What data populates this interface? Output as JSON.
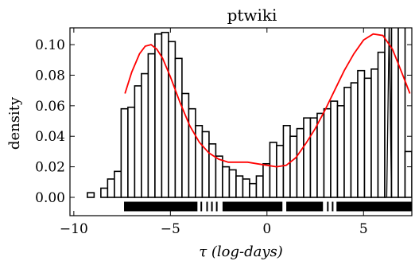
{
  "chart_data": {
    "type": "bar",
    "title": "ptwiki",
    "xlabel": "τ (log-days)",
    "ylabel": "density",
    "xlim": [
      -10.2,
      7.5
    ],
    "ylim": [
      -0.012,
      0.111
    ],
    "xticks": [
      -10,
      -5,
      0,
      5
    ],
    "xtick_labels": [
      "−10",
      "−5",
      "0",
      "5"
    ],
    "yticks": [
      0.0,
      0.02,
      0.04,
      0.06,
      0.08,
      0.1
    ],
    "ytick_labels": [
      "0.00",
      "0.02",
      "0.04",
      "0.06",
      "0.08",
      "0.10"
    ],
    "grid": false,
    "histogram": {
      "bin_width": 0.35,
      "bin_left_edges": [
        -9.3,
        -8.6,
        -8.25,
        -7.9,
        -7.55,
        -7.2,
        -6.85,
        -6.5,
        -6.15,
        -5.8,
        -5.45,
        -5.1,
        -4.75,
        -4.4,
        -4.05,
        -3.7,
        -3.35,
        -3.0,
        -2.65,
        -2.3,
        -1.95,
        -1.6,
        -1.25,
        -0.9,
        -0.55,
        -0.2,
        0.15,
        0.5,
        0.85,
        1.2,
        1.55,
        1.9,
        2.25,
        2.6,
        2.95,
        3.3,
        3.65,
        4.0,
        4.35,
        4.7,
        5.05,
        5.4,
        5.75,
        6.1,
        6.45,
        6.8,
        7.15
      ],
      "values": [
        0.003,
        0.006,
        0.012,
        0.017,
        0.058,
        0.059,
        0.073,
        0.081,
        0.094,
        0.107,
        0.108,
        0.102,
        0.091,
        0.068,
        0.058,
        0.047,
        0.043,
        0.035,
        0.027,
        0.02,
        0.018,
        0.014,
        0.012,
        0.009,
        0.014,
        0.022,
        0.036,
        0.034,
        0.047,
        0.04,
        0.045,
        0.052,
        0.052,
        0.055,
        0.058,
        0.063,
        0.06,
        0.072,
        0.075,
        0.083,
        0.078,
        0.084,
        0.095,
        0.115,
        0.115,
        0.115,
        0.03
      ]
    },
    "series": [
      {
        "type": "line",
        "color": "#ff0000",
        "x": [
          -7.35,
          -7.0,
          -6.6,
          -6.3,
          -6.0,
          -5.7,
          -5.4,
          -5.0,
          -4.5,
          -4.0,
          -3.5,
          -3.0,
          -2.5,
          -2.0,
          -1.5,
          -1.0,
          -0.5,
          0.0,
          0.5,
          1.0,
          1.5,
          2.0,
          2.5,
          3.0,
          3.5,
          4.0,
          4.5,
          5.0,
          5.5,
          6.0,
          6.5,
          7.0,
          7.4
        ],
        "y": [
          0.068,
          0.082,
          0.094,
          0.099,
          0.1,
          0.097,
          0.091,
          0.079,
          0.062,
          0.047,
          0.036,
          0.029,
          0.025,
          0.023,
          0.023,
          0.023,
          0.022,
          0.021,
          0.02,
          0.021,
          0.026,
          0.035,
          0.045,
          0.057,
          0.07,
          0.083,
          0.094,
          0.103,
          0.107,
          0.106,
          0.097,
          0.081,
          0.068
        ]
      }
    ],
    "spikes": {
      "x": [
        6.2,
        6.45
      ],
      "top": 0.111
    },
    "rug": {
      "y": -0.006,
      "segments": [
        [
          -7.4,
          -3.6
        ],
        [
          -2.3,
          0.8
        ],
        [
          1.0,
          2.9
        ],
        [
          3.6,
          7.5
        ]
      ],
      "x": [
        -3.4,
        -3.1,
        -2.85,
        -2.6,
        -1.85,
        -1.55,
        -1.2,
        -0.95,
        -0.35,
        0.1,
        0.35,
        0.55,
        1.5,
        2.55,
        3.15,
        3.4
      ]
    }
  }
}
